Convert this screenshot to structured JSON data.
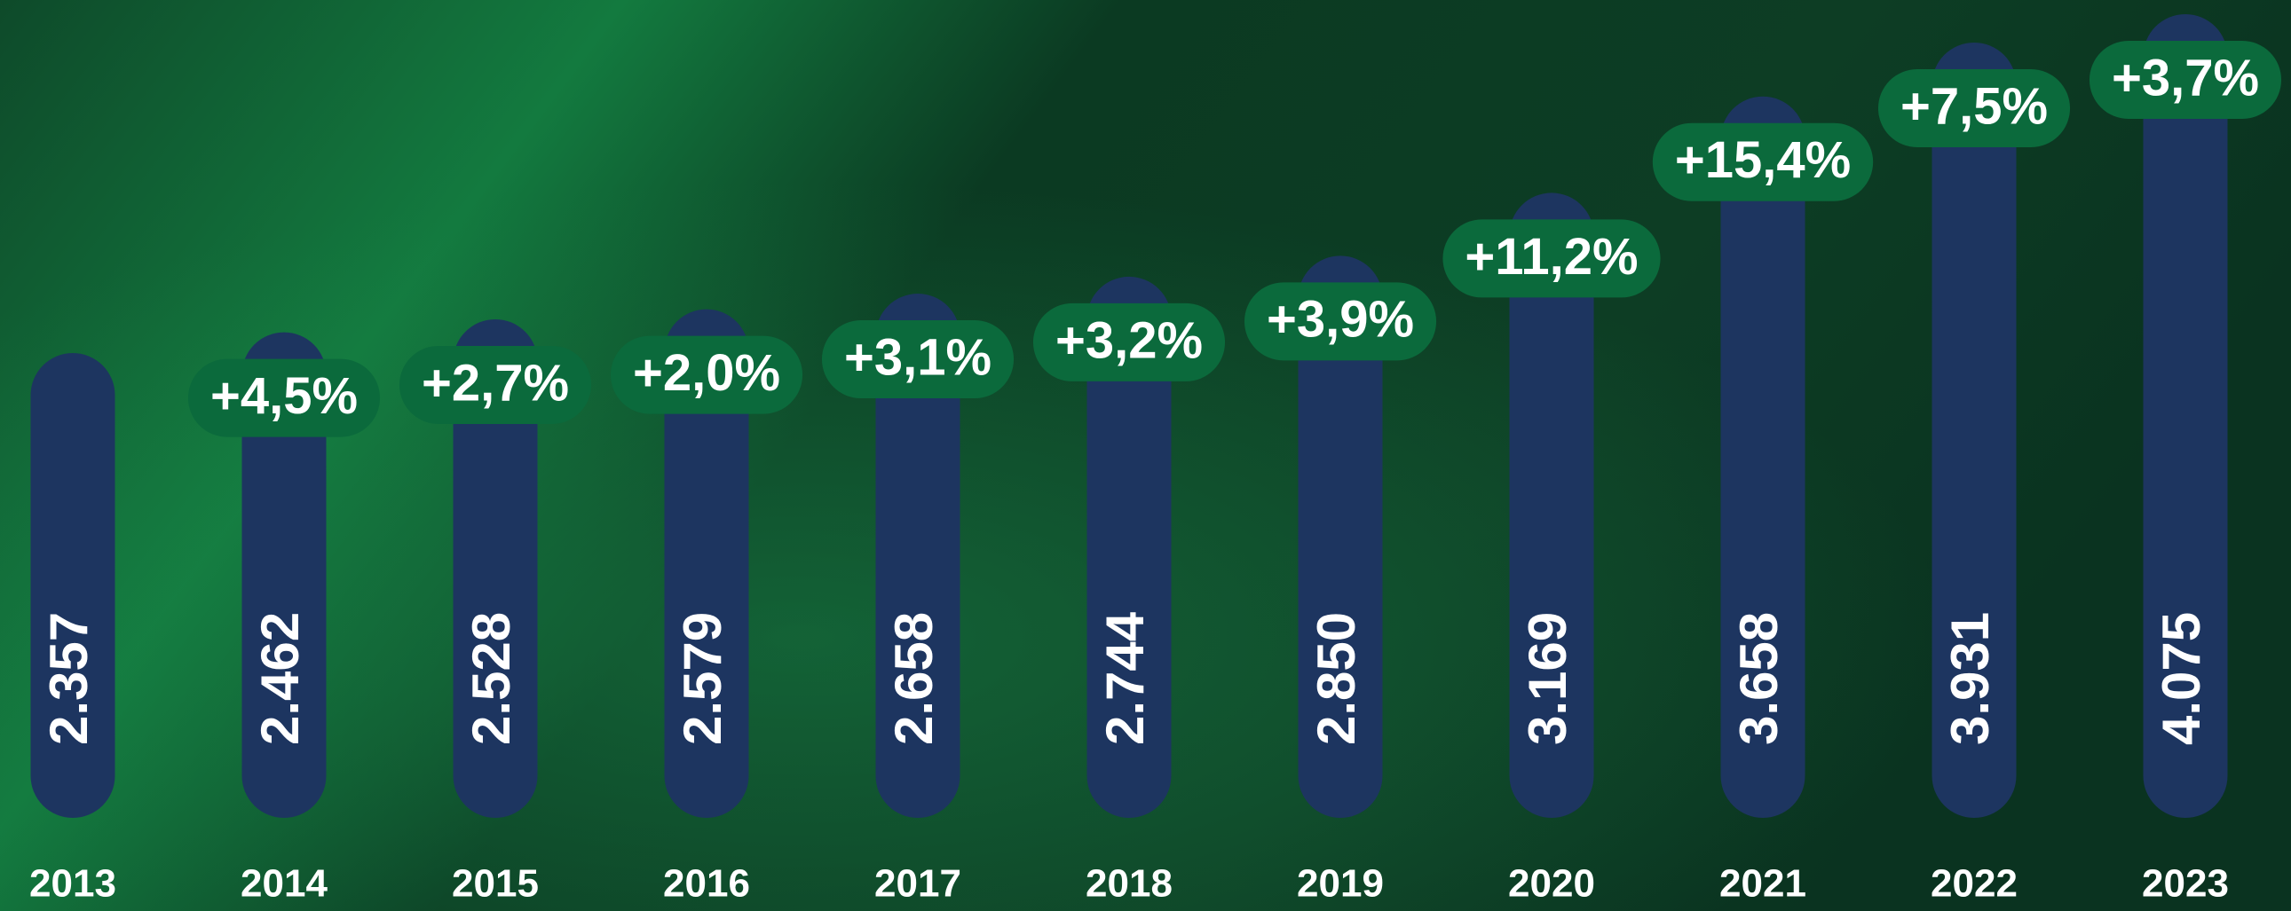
{
  "chart_data": {
    "type": "bar",
    "categories": [
      "2013",
      "2014",
      "2015",
      "2016",
      "2017",
      "2018",
      "2019",
      "2020",
      "2021",
      "2022",
      "2023"
    ],
    "values": [
      2357,
      2462,
      2528,
      2579,
      2658,
      2744,
      2850,
      3169,
      3658,
      3931,
      4075
    ],
    "value_labels": [
      "2.357",
      "2.462",
      "2.528",
      "2.579",
      "2.658",
      "2.744",
      "2.850",
      "3.169",
      "3.658",
      "3.931",
      "4.075"
    ],
    "growth": [
      null,
      4.5,
      2.7,
      2.0,
      3.1,
      3.2,
      3.9,
      11.2,
      15.4,
      7.5,
      3.7
    ],
    "growth_labels": [
      null,
      "+4,5%",
      "+2,7%",
      "+2,0%",
      "+3,1%",
      "+3,2%",
      "+3,9%",
      "+11,2%",
      "+15,4%",
      "+7,5%",
      "+3,7%"
    ],
    "color": "#1d3560",
    "growth_color": "#0b6a3c"
  }
}
